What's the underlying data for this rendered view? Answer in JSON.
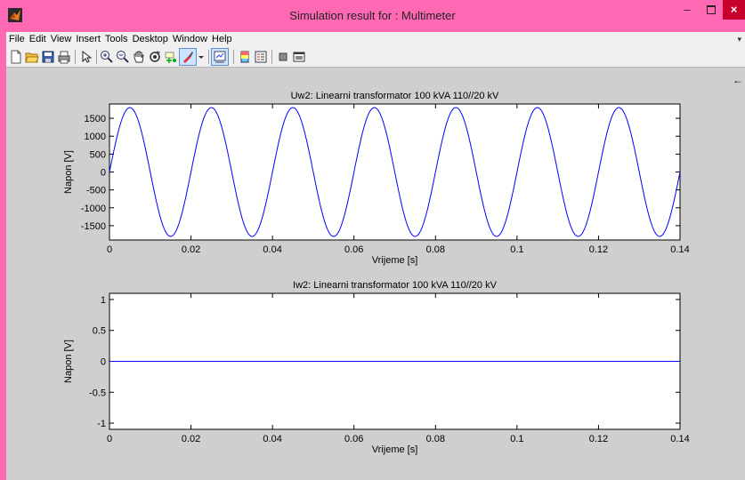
{
  "window": {
    "title": "Simulation result for : Multimeter"
  },
  "titlebar_buttons": {
    "minimize": "–",
    "close": "×"
  },
  "menu": [
    "File",
    "Edit",
    "View",
    "Insert",
    "Tools",
    "Desktop",
    "Window",
    "Help"
  ],
  "toolbar": [
    "new-figure-icon",
    "open-file-icon",
    "save-icon",
    "print-icon",
    "edit-plot-icon",
    "zoom-in-icon",
    "zoom-out-icon",
    "pan-icon",
    "rotate-3d-icon",
    "data-cursor-icon",
    "brush-icon",
    "brush-dropdown-icon",
    "link-plot-icon",
    "colorbar-icon",
    "legend-icon",
    "hide-plot-tools-icon",
    "show-plot-tools-icon"
  ],
  "dock_arrow": "←",
  "chart_data": [
    {
      "type": "line",
      "title": "Uw2: Linearni transformator 100 kVA  110//20 kV",
      "xlabel": "Vrijeme [s]",
      "ylabel": "Napon [V]",
      "xlim": [
        0,
        0.14
      ],
      "ylim": [
        -1900,
        1900
      ],
      "xticks": [
        0,
        0.02,
        0.04,
        0.06,
        0.08,
        0.1,
        0.12,
        0.14
      ],
      "xtick_labels": [
        "0",
        "0.02",
        "0.04",
        "0.06",
        "0.08",
        "0.1",
        "0.12",
        "0.14"
      ],
      "yticks": [
        -1500,
        -1000,
        -500,
        0,
        500,
        1000,
        1500
      ],
      "ytick_labels": [
        "-1500",
        "-1000",
        "-500",
        "0",
        "500",
        "1000",
        "1500"
      ],
      "grid": false,
      "series": [
        {
          "type": "sine",
          "amplitude": 1800,
          "frequency_hz": 50,
          "phase_deg": 0,
          "color": "#0000ff"
        }
      ]
    },
    {
      "type": "line",
      "title": "Iw2: Linearni transformator 100 kVA  110//20 kV",
      "xlabel": "Vrijeme [s]",
      "ylabel": "Napon [V]",
      "xlim": [
        0,
        0.14
      ],
      "ylim": [
        -1.1,
        1.1
      ],
      "xticks": [
        0,
        0.02,
        0.04,
        0.06,
        0.08,
        0.1,
        0.12,
        0.14
      ],
      "xtick_labels": [
        "0",
        "0.02",
        "0.04",
        "0.06",
        "0.08",
        "0.1",
        "0.12",
        "0.14"
      ],
      "yticks": [
        -1,
        -0.5,
        0,
        0.5,
        1
      ],
      "ytick_labels": [
        "-1",
        "-0.5",
        "0",
        "0.5",
        "1"
      ],
      "grid": false,
      "series": [
        {
          "type": "constant",
          "value": 0,
          "color": "#0000ff"
        }
      ]
    }
  ]
}
